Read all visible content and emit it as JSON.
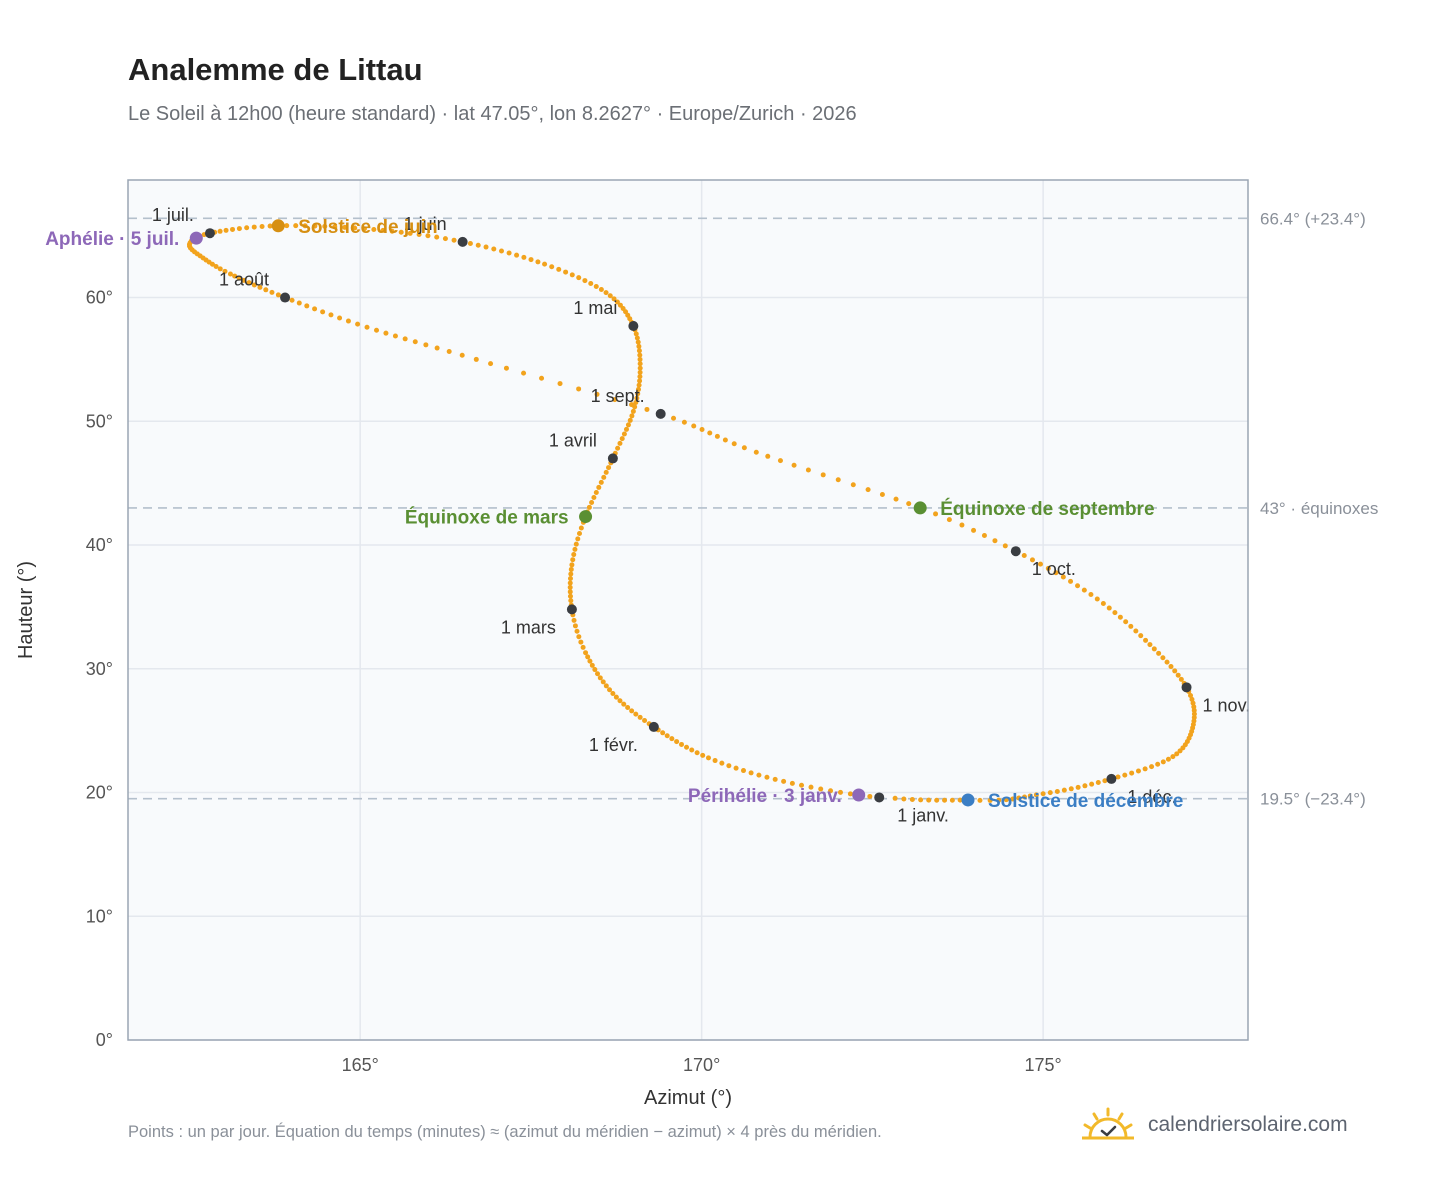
{
  "title": "Analemme de Littau",
  "subtitle": "Le Soleil à 12h00 (heure standard) · lat 47.05°, lon 8.2627° · Europe/Zurich · 2026",
  "footnote": "Points : un par jour. Équation du temps (minutes) ≈ (azimut du méridien − azimut) × 4 près du méridien.",
  "brand": {
    "text": "calendriersolaire.com",
    "icon": "sun-check-icon"
  },
  "colors": {
    "path": "#f2a31d",
    "month_marker": "#3a3d42",
    "solstice_june": "#d68f12",
    "solstice_december": "#3b7ec4",
    "equinox": "#5a8f33",
    "apsis": "#8d68b8",
    "reference_line": "#b4c0cc",
    "grid": "#e4e8ee",
    "plot_bg": "#f8fafc",
    "frame": "#9aa5b3"
  },
  "chart_data": {
    "type": "scatter",
    "xlabel": "Azimut (°)",
    "ylabel": "Hauteur (°)",
    "xlim": [
      161.6,
      178.0
    ],
    "ylim": [
      0,
      69.5
    ],
    "xticks": [
      165,
      170,
      175
    ],
    "xtick_labels": [
      "165°",
      "170°",
      "175°"
    ],
    "yticks": [
      0,
      10,
      20,
      30,
      40,
      50,
      60
    ],
    "ytick_labels": [
      "0°",
      "10°",
      "20°",
      "30°",
      "40°",
      "50°",
      "60°"
    ],
    "grid": true,
    "reference_lines": [
      {
        "y": 66.4,
        "label": "66.4° (+23.4°)"
      },
      {
        "y": 43.0,
        "label": "43° · équinoxes"
      },
      {
        "y": 19.5,
        "label": "19.5° (−23.4°)"
      }
    ],
    "path_anchors": [
      {
        "date": "2026-01-01",
        "az": 172.6,
        "alt": 19.6
      },
      {
        "date": "2026-01-11",
        "az": 171.2,
        "alt": 20.9
      },
      {
        "date": "2026-01-21",
        "az": 170.1,
        "alt": 22.8
      },
      {
        "date": "2026-02-01",
        "az": 169.3,
        "alt": 25.3
      },
      {
        "date": "2026-02-11",
        "az": 168.7,
        "alt": 28.0
      },
      {
        "date": "2026-02-21",
        "az": 168.3,
        "alt": 31.3
      },
      {
        "date": "2026-03-01",
        "az": 168.1,
        "alt": 34.8
      },
      {
        "date": "2026-03-11",
        "az": 168.1,
        "alt": 38.4
      },
      {
        "date": "2026-03-20",
        "az": 168.3,
        "alt": 42.3
      },
      {
        "date": "2026-04-01",
        "az": 168.7,
        "alt": 47.0
      },
      {
        "date": "2026-04-11",
        "az": 169.0,
        "alt": 50.8
      },
      {
        "date": "2026-04-21",
        "az": 169.1,
        "alt": 54.3
      },
      {
        "date": "2026-05-01",
        "az": 169.0,
        "alt": 57.7
      },
      {
        "date": "2026-05-11",
        "az": 168.6,
        "alt": 60.4
      },
      {
        "date": "2026-05-21",
        "az": 167.7,
        "alt": 62.7
      },
      {
        "date": "2026-06-01",
        "az": 166.5,
        "alt": 64.5
      },
      {
        "date": "2026-06-11",
        "az": 165.2,
        "alt": 65.5
      },
      {
        "date": "2026-06-21",
        "az": 163.8,
        "alt": 65.8
      },
      {
        "date": "2026-07-01",
        "az": 162.8,
        "alt": 65.2
      },
      {
        "date": "2026-07-08",
        "az": 162.5,
        "alt": 64.3
      },
      {
        "date": "2026-07-15",
        "az": 162.7,
        "alt": 63.2
      },
      {
        "date": "2026-07-22",
        "az": 163.1,
        "alt": 61.9
      },
      {
        "date": "2026-08-01",
        "az": 163.9,
        "alt": 60.0
      },
      {
        "date": "2026-08-11",
        "az": 165.1,
        "alt": 57.6
      },
      {
        "date": "2026-08-21",
        "az": 166.7,
        "alt": 55.0
      },
      {
        "date": "2026-09-01",
        "az": 169.4,
        "alt": 50.6
      },
      {
        "date": "2026-09-11",
        "az": 170.8,
        "alt": 47.5
      },
      {
        "date": "2026-09-23",
        "az": 173.2,
        "alt": 43.0
      },
      {
        "date": "2026-10-01",
        "az": 174.6,
        "alt": 39.5
      },
      {
        "date": "2026-10-11",
        "az": 175.7,
        "alt": 36.0
      },
      {
        "date": "2026-10-21",
        "az": 176.5,
        "alt": 32.3
      },
      {
        "date": "2026-11-01",
        "az": 177.1,
        "alt": 28.5
      },
      {
        "date": "2026-11-11",
        "az": 177.2,
        "alt": 25.5
      },
      {
        "date": "2026-11-21",
        "az": 176.9,
        "alt": 22.9
      },
      {
        "date": "2026-12-01",
        "az": 176.0,
        "alt": 21.1
      },
      {
        "date": "2026-12-11",
        "az": 175.0,
        "alt": 19.9
      },
      {
        "date": "2026-12-21",
        "az": 173.9,
        "alt": 19.4
      },
      {
        "date": "2026-12-31",
        "az": 172.7,
        "alt": 19.6
      }
    ],
    "month_markers": [
      {
        "label": "1 janv.",
        "az": 172.6,
        "alt": 19.6,
        "label_pos": "below"
      },
      {
        "label": "1 févr.",
        "az": 169.3,
        "alt": 25.3,
        "label_pos": "below-left"
      },
      {
        "label": "1 mars",
        "az": 168.1,
        "alt": 34.8,
        "label_pos": "below-left"
      },
      {
        "label": "1 avril",
        "az": 168.7,
        "alt": 47.0,
        "label_pos": "above-left"
      },
      {
        "label": "1 mai",
        "az": 169.0,
        "alt": 57.7,
        "label_pos": "above-left"
      },
      {
        "label": "1 juin",
        "az": 166.5,
        "alt": 64.5,
        "label_pos": "above-left"
      },
      {
        "label": "1 juil.",
        "az": 162.8,
        "alt": 65.2,
        "label_pos": "above-left"
      },
      {
        "label": "1 août",
        "az": 163.9,
        "alt": 60.0,
        "label_pos": "above-left"
      },
      {
        "label": "1 sept.",
        "az": 169.4,
        "alt": 50.6,
        "label_pos": "above-left"
      },
      {
        "label": "1 oct.",
        "az": 174.6,
        "alt": 39.5,
        "label_pos": "below-right"
      },
      {
        "label": "1 nov.",
        "az": 177.1,
        "alt": 28.5,
        "label_pos": "below-right"
      },
      {
        "label": "1 déc.",
        "az": 176.0,
        "alt": 21.1,
        "label_pos": "below-right"
      }
    ],
    "events": [
      {
        "label": "Solstice de juin",
        "az": 163.8,
        "alt": 65.8,
        "color_key": "solstice_june",
        "label_side": "right"
      },
      {
        "label": "Solstice de décembre",
        "az": 173.9,
        "alt": 19.4,
        "color_key": "solstice_december",
        "label_side": "right"
      },
      {
        "label": "Équinoxe de mars",
        "az": 168.3,
        "alt": 42.3,
        "color_key": "equinox",
        "label_side": "left"
      },
      {
        "label": "Équinoxe de septembre",
        "az": 173.2,
        "alt": 43.0,
        "color_key": "equinox",
        "label_side": "right"
      },
      {
        "label": "Aphélie · 5 juil.",
        "az": 162.6,
        "alt": 64.8,
        "color_key": "apsis",
        "label_side": "left"
      },
      {
        "label": "Périhélie · 3 janv.",
        "az": 172.3,
        "alt": 19.8,
        "color_key": "apsis",
        "label_side": "left"
      }
    ]
  }
}
